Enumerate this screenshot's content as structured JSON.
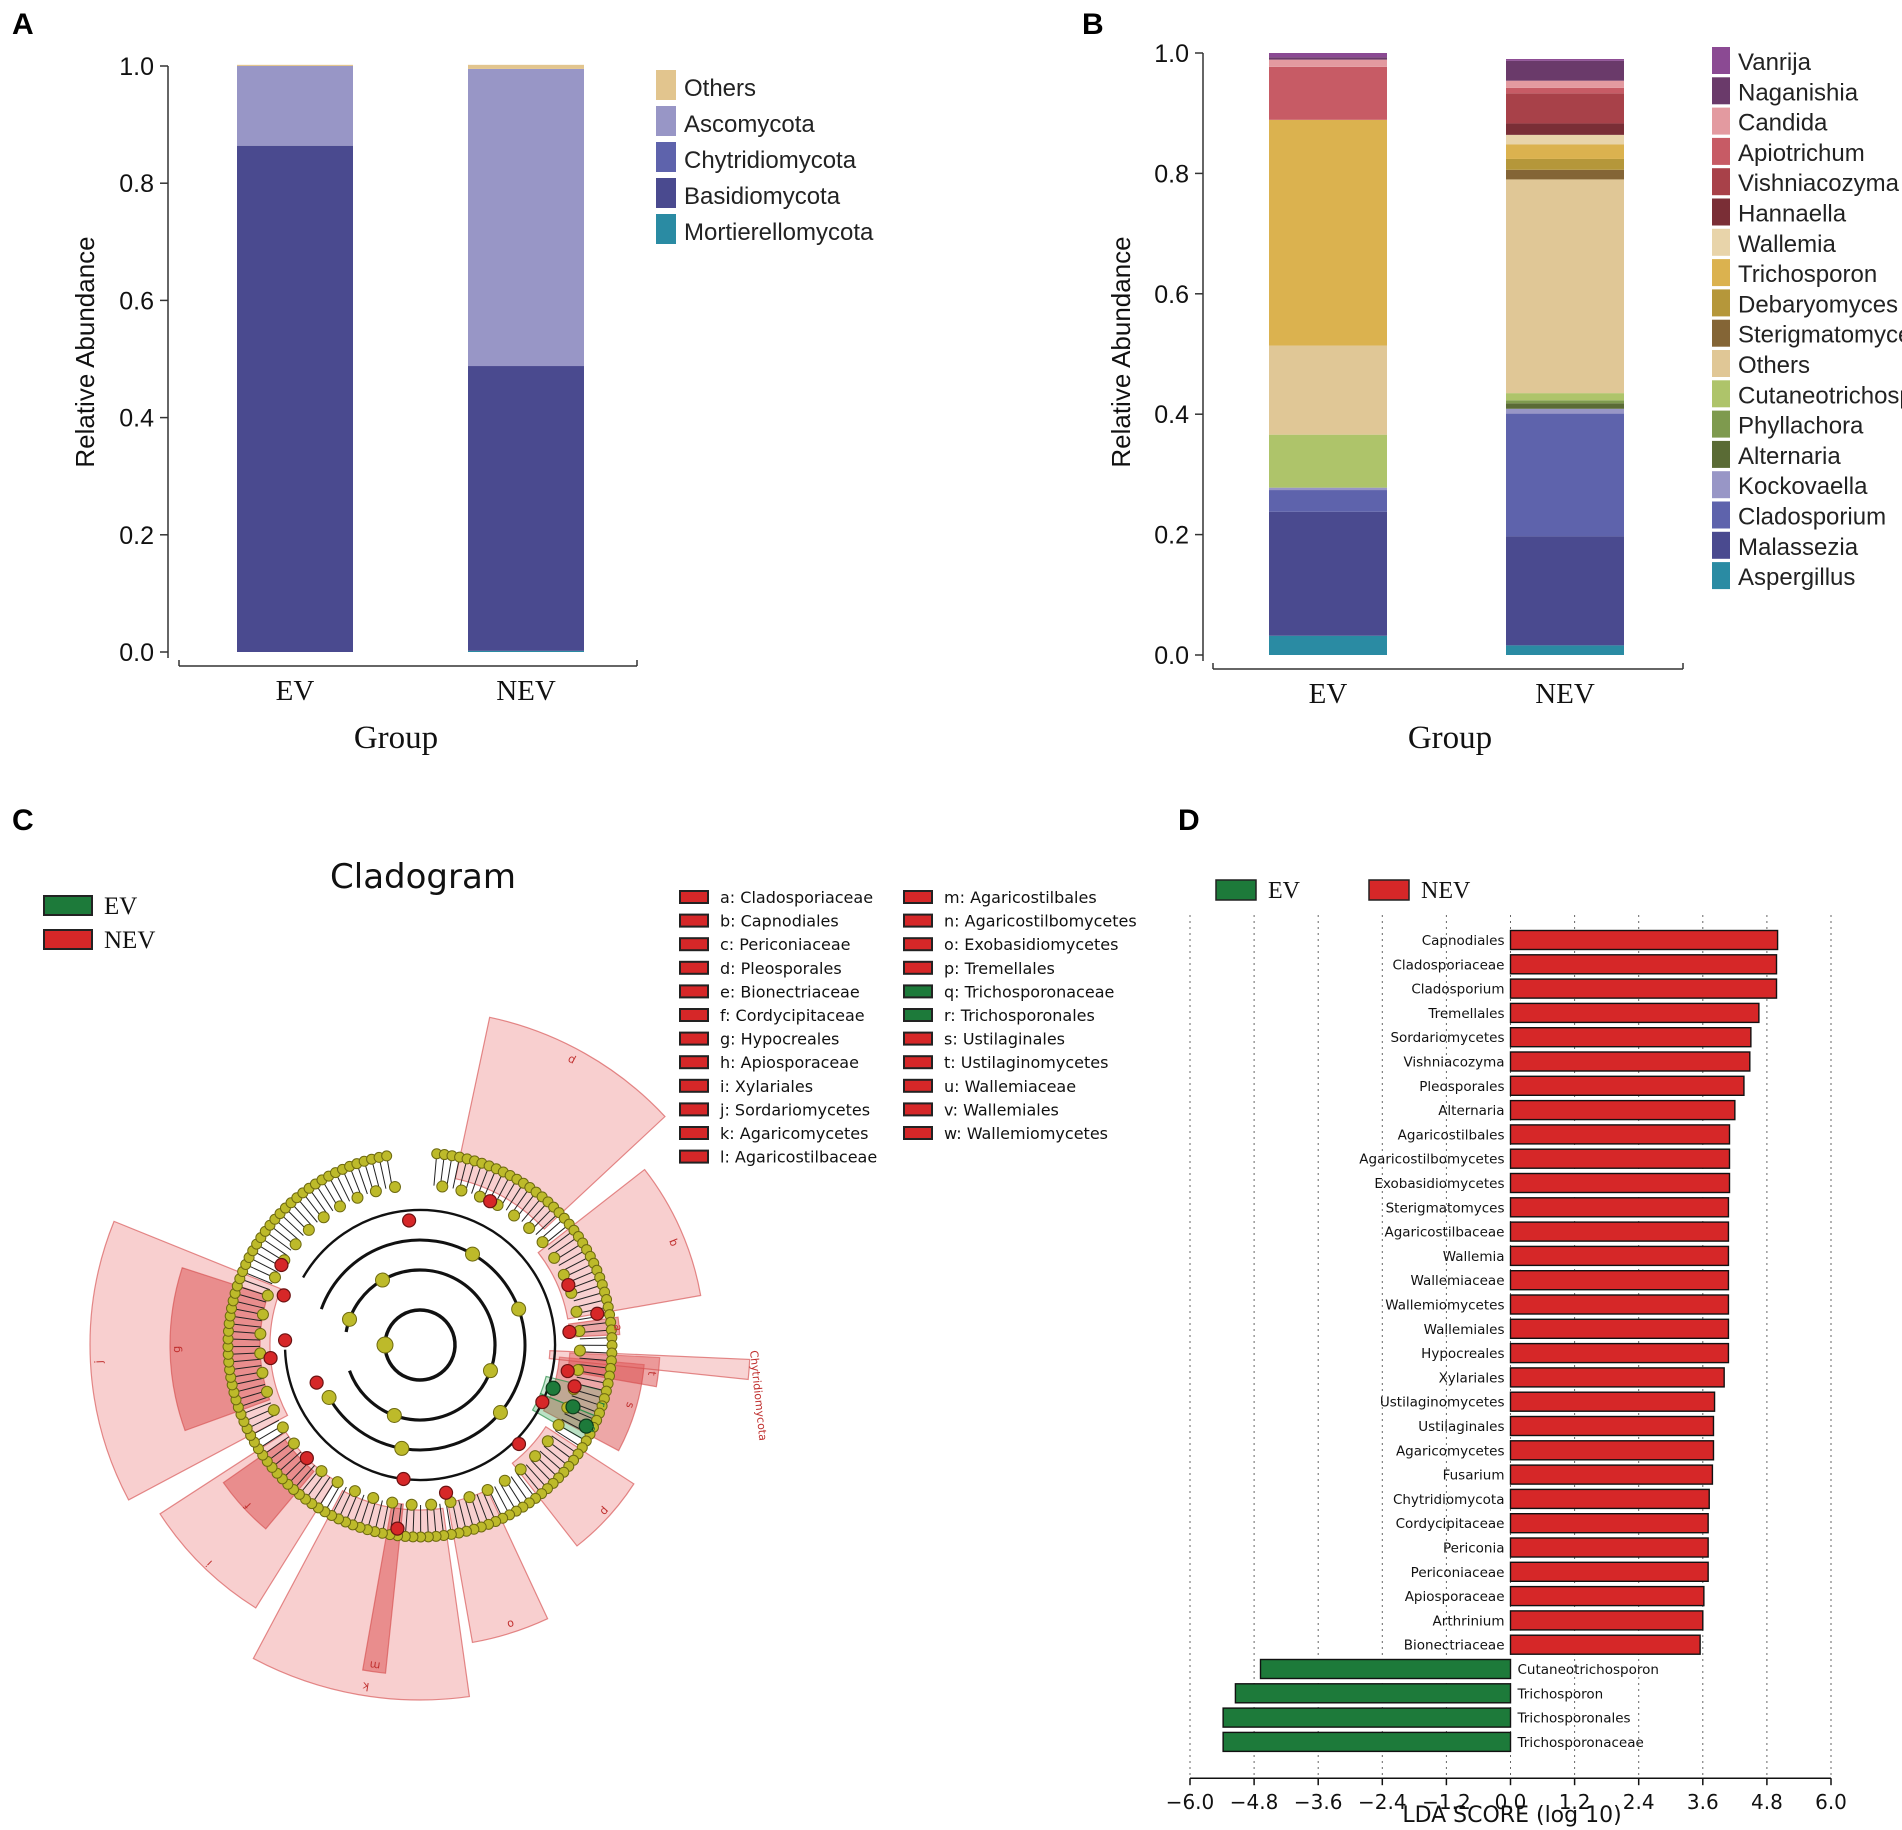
{
  "panels": {
    "a": "A",
    "b": "B",
    "c": "C",
    "d": "D"
  },
  "colors": {
    "Others": "#E2C58E",
    "Ascomycota": "#9896C6",
    "Chytridiomycota": "#5E63AC",
    "Basidiomycota": "#4A4A8F",
    "Mortierellomycota": "#2A8BA3",
    "EV": "#1D7A3A",
    "NEV": "#D62728"
  },
  "chart_data": [
    {
      "id": "A",
      "type": "bar",
      "stacked": true,
      "title": "",
      "xlabel": "Group",
      "ylabel": "Relative Abundance",
      "ylim": [
        0,
        1.0
      ],
      "yticks": [
        "0.0",
        "0.2",
        "0.4",
        "0.6",
        "0.8",
        "1.0"
      ],
      "categories": [
        "EV",
        "NEV"
      ],
      "series": [
        {
          "name": "Mortierellomycota",
          "color": "#2A8BA3",
          "values": [
            0.0,
            0.002
          ]
        },
        {
          "name": "Basidiomycota",
          "color": "#4A4A8F",
          "values": [
            0.864,
            0.486
          ]
        },
        {
          "name": "Chytridiomycota",
          "color": "#5E63AC",
          "values": [
            0.0,
            0.0
          ]
        },
        {
          "name": "Ascomycota",
          "color": "#9896C6",
          "values": [
            0.136,
            0.507
          ]
        },
        {
          "name": "Others",
          "color": "#E2C58E",
          "values": [
            0.002,
            0.007
          ]
        }
      ],
      "legend": [
        "Others",
        "Ascomycota",
        "Chytridiomycota",
        "Basidiomycota",
        "Mortierellomycota"
      ]
    },
    {
      "id": "B",
      "type": "bar",
      "stacked": true,
      "title": "",
      "xlabel": "Group",
      "ylabel": "Relative Abundance",
      "ylim": [
        0,
        1.0
      ],
      "yticks": [
        "0.0",
        "0.2",
        "0.4",
        "0.6",
        "0.8",
        "1.0"
      ],
      "categories": [
        "EV",
        "NEV"
      ],
      "series": [
        {
          "name": "Aspergillus",
          "color": "#2A8BA3",
          "values": [
            0.032,
            0.016
          ]
        },
        {
          "name": "Malassezia",
          "color": "#4A4A8F",
          "values": [
            0.206,
            0.181
          ]
        },
        {
          "name": "Cladosporium",
          "color": "#5E63AC",
          "values": [
            0.036,
            0.204
          ]
        },
        {
          "name": "Kockovaella",
          "color": "#9896C6",
          "values": [
            0.004,
            0.008
          ]
        },
        {
          "name": "Alternaria",
          "color": "#5A6B35",
          "values": [
            0.0,
            0.009
          ]
        },
        {
          "name": "Phyllachora",
          "color": "#7E9A4E",
          "values": [
            0.0,
            0.005
          ]
        },
        {
          "name": "Cutaneotrichosporon",
          "color": "#AEC46A",
          "values": [
            0.088,
            0.012
          ]
        },
        {
          "name": "Others",
          "color": "#E0C796",
          "values": [
            0.148,
            0.355
          ]
        },
        {
          "name": "Sterigmatomyces",
          "color": "#846536",
          "values": [
            0.0,
            0.016
          ]
        },
        {
          "name": "Debaryomyces",
          "color": "#B5973A",
          "values": [
            0.0,
            0.018
          ]
        },
        {
          "name": "Trichosporon",
          "color": "#DBB24F",
          "values": [
            0.375,
            0.024
          ]
        },
        {
          "name": "Wallemia",
          "color": "#E8D4AA",
          "values": [
            0.0,
            0.016
          ]
        },
        {
          "name": "Hannaella",
          "color": "#7A2E36",
          "values": [
            0.0,
            0.019
          ]
        },
        {
          "name": "Vishniacozyma",
          "color": "#A84149",
          "values": [
            0.0,
            0.05
          ]
        },
        {
          "name": "Apiotrichum",
          "color": "#C75B65",
          "values": [
            0.088,
            0.009
          ]
        },
        {
          "name": "Candida",
          "color": "#E39AA0",
          "values": [
            0.012,
            0.012
          ]
        },
        {
          "name": "Naganishia",
          "color": "#6A3A6A",
          "values": [
            0.004,
            0.033
          ]
        },
        {
          "name": "Vanrija",
          "color": "#8B4A93",
          "values": [
            0.007,
            0.003
          ]
        }
      ],
      "legend": [
        "Vanrija",
        "Naganishia",
        "Candida",
        "Apiotrichum",
        "Vishniacozyma",
        "Hannaella",
        "Wallemia",
        "Trichosporon",
        "Debaryomyces",
        "Sterigmatomyces",
        "Others",
        "Cutaneotrichosporon",
        "Phyllachora",
        "Alternaria",
        "Kockovaella",
        "Cladosporium",
        "Malassezia",
        "Aspergillus"
      ]
    },
    {
      "id": "C",
      "type": "other",
      "title": "Cladogram",
      "legend_groups": [
        "EV",
        "NEV"
      ],
      "arc_label": "Chytridiomycota",
      "entries": [
        {
          "key": "a",
          "name": "a: Cladosporiaceae",
          "group": "NEV"
        },
        {
          "key": "b",
          "name": "b: Capnodiales",
          "group": "NEV"
        },
        {
          "key": "c",
          "name": "c: Periconiaceae",
          "group": "NEV"
        },
        {
          "key": "d",
          "name": "d: Pleosporales",
          "group": "NEV"
        },
        {
          "key": "e",
          "name": "e: Bionectriaceae",
          "group": "NEV"
        },
        {
          "key": "f",
          "name": "f: Cordycipitaceae",
          "group": "NEV"
        },
        {
          "key": "g",
          "name": "g: Hypocreales",
          "group": "NEV"
        },
        {
          "key": "h",
          "name": "h: Apiosporaceae",
          "group": "NEV"
        },
        {
          "key": "i",
          "name": "i: Xylariales",
          "group": "NEV"
        },
        {
          "key": "j",
          "name": "j: Sordariomycetes",
          "group": "NEV"
        },
        {
          "key": "k",
          "name": "k: Agaricomycetes",
          "group": "NEV"
        },
        {
          "key": "l",
          "name": "l: Agaricostilbaceae",
          "group": "NEV"
        },
        {
          "key": "m",
          "name": "m: Agaricostilbales",
          "group": "NEV"
        },
        {
          "key": "n",
          "name": "n: Agaricostilbomycetes",
          "group": "NEV"
        },
        {
          "key": "o",
          "name": "o: Exobasidiomycetes",
          "group": "NEV"
        },
        {
          "key": "p",
          "name": "p: Tremellales",
          "group": "NEV"
        },
        {
          "key": "q",
          "name": "q: Trichosporonaceae",
          "group": "EV"
        },
        {
          "key": "r",
          "name": "r: Trichosporonales",
          "group": "EV"
        },
        {
          "key": "s",
          "name": "s: Ustilaginales",
          "group": "NEV"
        },
        {
          "key": "t",
          "name": "t: Ustilaginomycetes",
          "group": "NEV"
        },
        {
          "key": "u",
          "name": "u: Wallemiaceae",
          "group": "NEV"
        },
        {
          "key": "v",
          "name": "v: Wallemiales",
          "group": "NEV"
        },
        {
          "key": "w",
          "name": "w: Wallemiomycetes",
          "group": "NEV"
        }
      ]
    },
    {
      "id": "D",
      "type": "bar",
      "orientation": "horizontal",
      "title": "",
      "xlabel": "LDA SCORE (log 10)",
      "ylabel": "",
      "xlim": [
        -6.0,
        6.0
      ],
      "xticks": [
        "−6.0",
        "−4.8",
        "−3.6",
        "−2.4",
        "−1.2",
        "0.0",
        "1.2",
        "2.4",
        "3.6",
        "4.8",
        "6.0"
      ],
      "legend": [
        "EV",
        "NEV"
      ],
      "features": [
        {
          "name": "Capnodiales",
          "value": 5.0,
          "group": "NEV"
        },
        {
          "name": "Cladosporiaceae",
          "value": 4.98,
          "group": "NEV"
        },
        {
          "name": "Cladosporium",
          "value": 4.98,
          "group": "NEV"
        },
        {
          "name": "Tremellales",
          "value": 4.65,
          "group": "NEV"
        },
        {
          "name": "Sordariomycetes",
          "value": 4.5,
          "group": "NEV"
        },
        {
          "name": "Vishniacozyma",
          "value": 4.48,
          "group": "NEV"
        },
        {
          "name": "Pleosporales",
          "value": 4.37,
          "group": "NEV"
        },
        {
          "name": "Alternaria",
          "value": 4.2,
          "group": "NEV"
        },
        {
          "name": "Agaricostilbales",
          "value": 4.1,
          "group": "NEV"
        },
        {
          "name": "Agaricostilbomycetes",
          "value": 4.1,
          "group": "NEV"
        },
        {
          "name": "Exobasidiomycetes",
          "value": 4.1,
          "group": "NEV"
        },
        {
          "name": "Sterigmatomyces",
          "value": 4.08,
          "group": "NEV"
        },
        {
          "name": "Agaricostilbaceae",
          "value": 4.08,
          "group": "NEV"
        },
        {
          "name": "Wallemia",
          "value": 4.08,
          "group": "NEV"
        },
        {
          "name": "Wallemiaceae",
          "value": 4.08,
          "group": "NEV"
        },
        {
          "name": "Wallemiomycetes",
          "value": 4.08,
          "group": "NEV"
        },
        {
          "name": "Wallemiales",
          "value": 4.08,
          "group": "NEV"
        },
        {
          "name": "Hypocreales",
          "value": 4.08,
          "group": "NEV"
        },
        {
          "name": "Xylariales",
          "value": 4.0,
          "group": "NEV"
        },
        {
          "name": "Ustilaginomycetes",
          "value": 3.82,
          "group": "NEV"
        },
        {
          "name": "Ustilaginales",
          "value": 3.8,
          "group": "NEV"
        },
        {
          "name": "Agaricomycetes",
          "value": 3.8,
          "group": "NEV"
        },
        {
          "name": "Fusarium",
          "value": 3.78,
          "group": "NEV"
        },
        {
          "name": "Chytridiomycota",
          "value": 3.72,
          "group": "NEV"
        },
        {
          "name": "Cordycipitaceae",
          "value": 3.7,
          "group": "NEV"
        },
        {
          "name": "Periconia",
          "value": 3.7,
          "group": "NEV"
        },
        {
          "name": "Periconiaceae",
          "value": 3.7,
          "group": "NEV"
        },
        {
          "name": "Apiosporaceae",
          "value": 3.62,
          "group": "NEV"
        },
        {
          "name": "Arthrinium",
          "value": 3.6,
          "group": "NEV"
        },
        {
          "name": "Bionectriaceae",
          "value": 3.55,
          "group": "NEV"
        },
        {
          "name": "Cutaneotrichosporon",
          "value": -4.68,
          "group": "EV"
        },
        {
          "name": "Trichosporon",
          "value": -5.15,
          "group": "EV"
        },
        {
          "name": "Trichosporonales",
          "value": -5.38,
          "group": "EV"
        },
        {
          "name": "Trichosporonaceae",
          "value": -5.38,
          "group": "EV"
        }
      ]
    }
  ]
}
